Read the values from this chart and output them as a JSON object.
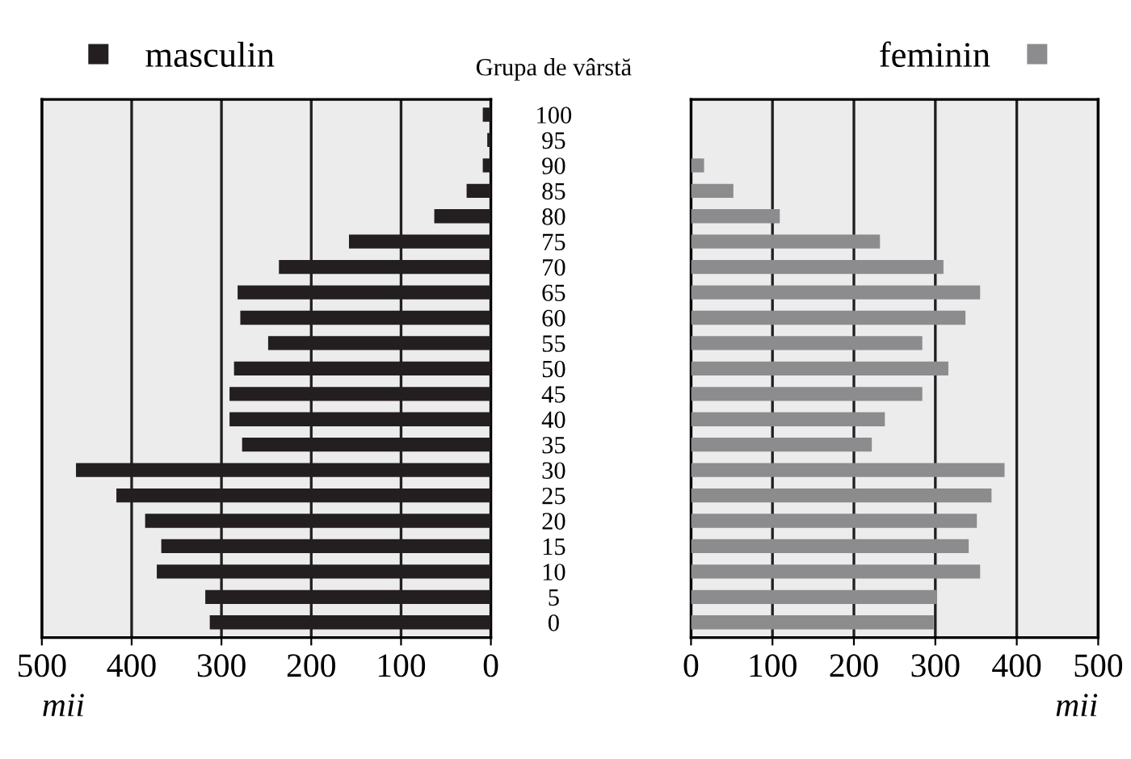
{
  "chart_data": [
    {
      "type": "bar",
      "orientation": "horizontal",
      "ylabel": "Grupa de vârstă",
      "xlabel": "mii",
      "categories": [
        "100",
        "95",
        "90",
        "85",
        "80",
        "75",
        "70",
        "65",
        "60",
        "55",
        "50",
        "45",
        "40",
        "35",
        "30",
        "25",
        "20",
        "15",
        "10",
        "5",
        "0"
      ],
      "series": [
        {
          "name": "masculin",
          "color": "#231f20",
          "values": [
            9,
            4,
            9,
            27,
            63,
            158,
            236,
            282,
            279,
            248,
            286,
            291,
            291,
            277,
            462,
            417,
            385,
            367,
            372,
            318,
            313
          ]
        }
      ],
      "xlim": [
        500,
        0
      ],
      "xticks": [
        0,
        100,
        200,
        300,
        400,
        500
      ],
      "grid": "x",
      "legend": "top left"
    },
    {
      "type": "bar",
      "orientation": "horizontal",
      "xlabel": "mii",
      "tick_labels": "x",
      "categories": [
        "100",
        "95",
        "90",
        "85",
        "80",
        "75",
        "70",
        "65",
        "60",
        "55",
        "50",
        "45",
        "40",
        "35",
        "30",
        "25",
        "20",
        "15",
        "10",
        "5",
        "0"
      ],
      "series": [
        {
          "name": "feminin",
          "color": "#8c8c8f",
          "values": [
            0,
            0,
            16,
            52,
            109,
            232,
            310,
            355,
            337,
            284,
            316,
            284,
            238,
            222,
            385,
            369,
            351,
            341,
            355,
            302,
            298
          ]
        }
      ],
      "xlim": [
        0,
        500
      ],
      "xticks": [
        0,
        100,
        200,
        300,
        400,
        500
      ],
      "grid": "x",
      "legend": "top right"
    }
  ]
}
